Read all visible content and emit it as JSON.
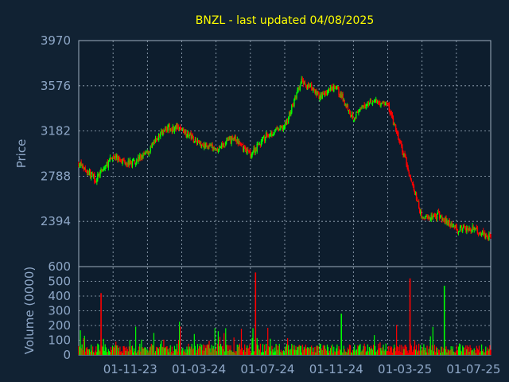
{
  "colors": {
    "background": "#112233",
    "plot_background": "#0d1d2d",
    "title": "#ffff00",
    "axis_text": "#8fa8c8",
    "grid": "#a0b0c0",
    "up": "#00ff00",
    "down": "#ff0000"
  },
  "chart_data": [
    {
      "type": "candlestick",
      "title": "BNZL - last updated 04/08/2025",
      "ylabel": "Price",
      "ylim": [
        2000,
        3970
      ],
      "y_ticks": [
        3970,
        3576,
        3182,
        2788,
        2394
      ],
      "x_ticks": [
        "01-11-23",
        "01-03-24",
        "01-07-24",
        "01-11-24",
        "01-03-25",
        "01-07-25"
      ],
      "x_range": [
        "2023-08",
        "2025-08"
      ],
      "grid": true,
      "price_path": [
        {
          "t": "2023-08",
          "close": 2900
        },
        {
          "t": "2023-09",
          "close": 2760
        },
        {
          "t": "2023-10",
          "close": 2960
        },
        {
          "t": "2023-11",
          "close": 2900
        },
        {
          "t": "2023-12",
          "close": 2990
        },
        {
          "t": "2024-01",
          "close": 3210
        },
        {
          "t": "2024-02",
          "close": 3200
        },
        {
          "t": "2024-03",
          "close": 3080
        },
        {
          "t": "2024-04",
          "close": 3020
        },
        {
          "t": "2024-05",
          "close": 3120
        },
        {
          "t": "2024-06",
          "close": 2980
        },
        {
          "t": "2024-07",
          "close": 3150
        },
        {
          "t": "2024-08",
          "close": 3220
        },
        {
          "t": "2024-09",
          "close": 3620
        },
        {
          "t": "2024-10",
          "close": 3490
        },
        {
          "t": "2024-11",
          "close": 3560
        },
        {
          "t": "2024-12",
          "close": 3300
        },
        {
          "t": "2025-01",
          "close": 3450
        },
        {
          "t": "2025-02",
          "close": 3410
        },
        {
          "t": "2025-03",
          "close": 2940
        },
        {
          "t": "2025-04",
          "close": 2420
        },
        {
          "t": "2025-05",
          "close": 2450
        },
        {
          "t": "2025-06",
          "close": 2330
        },
        {
          "t": "2025-07",
          "close": 2330
        },
        {
          "t": "2025-08",
          "close": 2250
        }
      ]
    },
    {
      "type": "bar",
      "ylabel": "Volume (0000)",
      "ylim": [
        0,
        600
      ],
      "y_ticks": [
        600,
        500,
        400,
        300,
        200,
        100,
        0
      ],
      "typical_volume": 60,
      "spikes": [
        {
          "t": "2023-09",
          "value": 420,
          "color": "down"
        },
        {
          "t": "2024-06",
          "value": 560,
          "color": "down"
        },
        {
          "t": "2024-11",
          "value": 280,
          "color": "up"
        },
        {
          "t": "2025-03",
          "value": 520,
          "color": "down"
        },
        {
          "t": "2025-05",
          "value": 470,
          "color": "up"
        }
      ]
    }
  ]
}
